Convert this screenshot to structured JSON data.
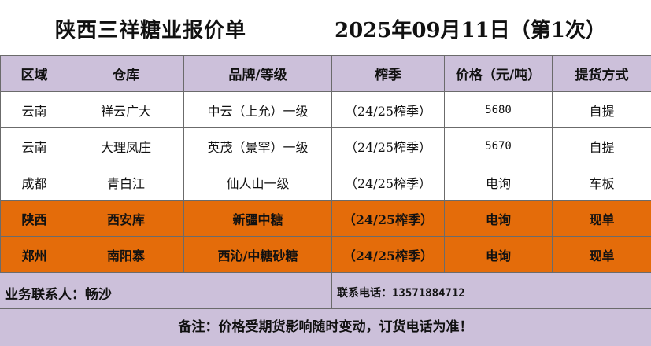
{
  "header": {
    "title": "陕西三祥糖业报价单",
    "date": "2025年09月11日（第1次）"
  },
  "table": {
    "columns": [
      "区域",
      "仓库",
      "品牌/等级",
      "榨季",
      "价格（元/吨）",
      "提货方式"
    ],
    "rows": [
      {
        "region": "云南",
        "warehouse": "祥云广大",
        "brand": "中云（上允）一级",
        "season": "（24/25榨季）",
        "price": "5680",
        "pickup": "自提"
      },
      {
        "region": "云南",
        "warehouse": "大理凤庄",
        "brand": "英茂（景罕）一级",
        "season": "（24/25榨季）",
        "price": "5670",
        "pickup": "自提"
      },
      {
        "region": "成都",
        "warehouse": "青白江",
        "brand": "仙人山一级",
        "season": "（24/25榨季）",
        "price": "电询",
        "pickup": "车板"
      },
      {
        "region": "陕西",
        "warehouse": "西安库",
        "brand": "新疆中糖",
        "season": "（24/25榨季）",
        "price": "电询",
        "pickup": "现单"
      },
      {
        "region": "郑州",
        "warehouse": "南阳寨",
        "brand": "西沁/中糖砂糖",
        "season": "（24/25榨季）",
        "price": "电询",
        "pickup": "现单"
      }
    ]
  },
  "contact": {
    "person": "业务联系人：畅沙",
    "phone": "联系电话：13571884712"
  },
  "note": "备注：价格受期货影响随时变动，订货电话为准！",
  "colors": {
    "header_bg": "#ccc0da",
    "highlight_bg": "#e46c0a"
  }
}
